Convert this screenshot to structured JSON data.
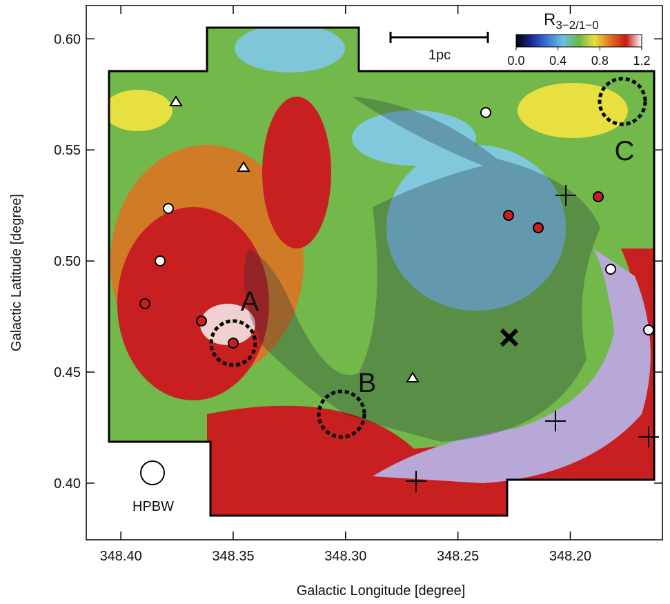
{
  "chart_data": {
    "type": "map",
    "x_label": "Galactic Longitude [degree]",
    "y_label": "Galactic Latitude [degree]",
    "xlim": [
      348.4154,
      348.159
    ],
    "ylim": [
      0.3745,
      0.615
    ],
    "xticks": [
      {
        "value": 348.4,
        "label": "348.40"
      },
      348.35,
      {
        "value": 348.3,
        "label": "348.30"
      },
      348.25,
      {
        "value": 348.2,
        "label": "348.20"
      }
    ],
    "yticks": [
      {
        "value": 0.4,
        "label": "0.40"
      },
      0.45,
      {
        "value": 0.5,
        "label": "0.50"
      },
      0.55,
      {
        "value": 0.6,
        "label": "0.60"
      }
    ],
    "colorbar": {
      "symbol": "R",
      "subscript": "3−2/1−0",
      "lim": [
        0,
        1.2
      ],
      "ticks": [
        {
          "value": 0,
          "label": "0.0"
        },
        0.4,
        0.8,
        1.2
      ],
      "colormap": [
        "#000000",
        "#1a2a9c",
        "#3c78d8",
        "#6cc0e0",
        "#6ab845",
        "#e8e040",
        "#e07020",
        "#c81818",
        "#ffffff"
      ]
    },
    "scale_bar": "1pc",
    "beam_label": "HPBW",
    "region_labels": [
      "A",
      "B",
      "C"
    ]
  }
}
